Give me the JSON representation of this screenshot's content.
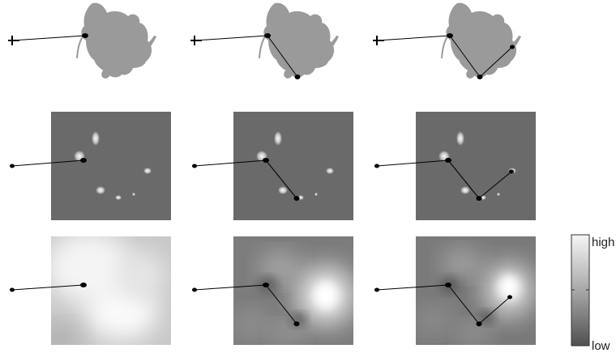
{
  "colorbar": {
    "high_label": "high",
    "low_label": "low",
    "high_color": "#f4f4f4",
    "low_color": "#555555"
  },
  "colors": {
    "silhouette": "#9a9a9a",
    "map_background": "#6a6a6a",
    "trace": "#000000"
  },
  "rows": [
    {
      "name": "silhouettes",
      "panels": 3
    },
    {
      "name": "sparse-maps",
      "panels": 3
    },
    {
      "name": "dense-maps",
      "panels": 3
    }
  ],
  "columns": [
    {
      "trace_segments": 1
    },
    {
      "trace_segments": 2
    },
    {
      "trace_segments": 3
    }
  ]
}
